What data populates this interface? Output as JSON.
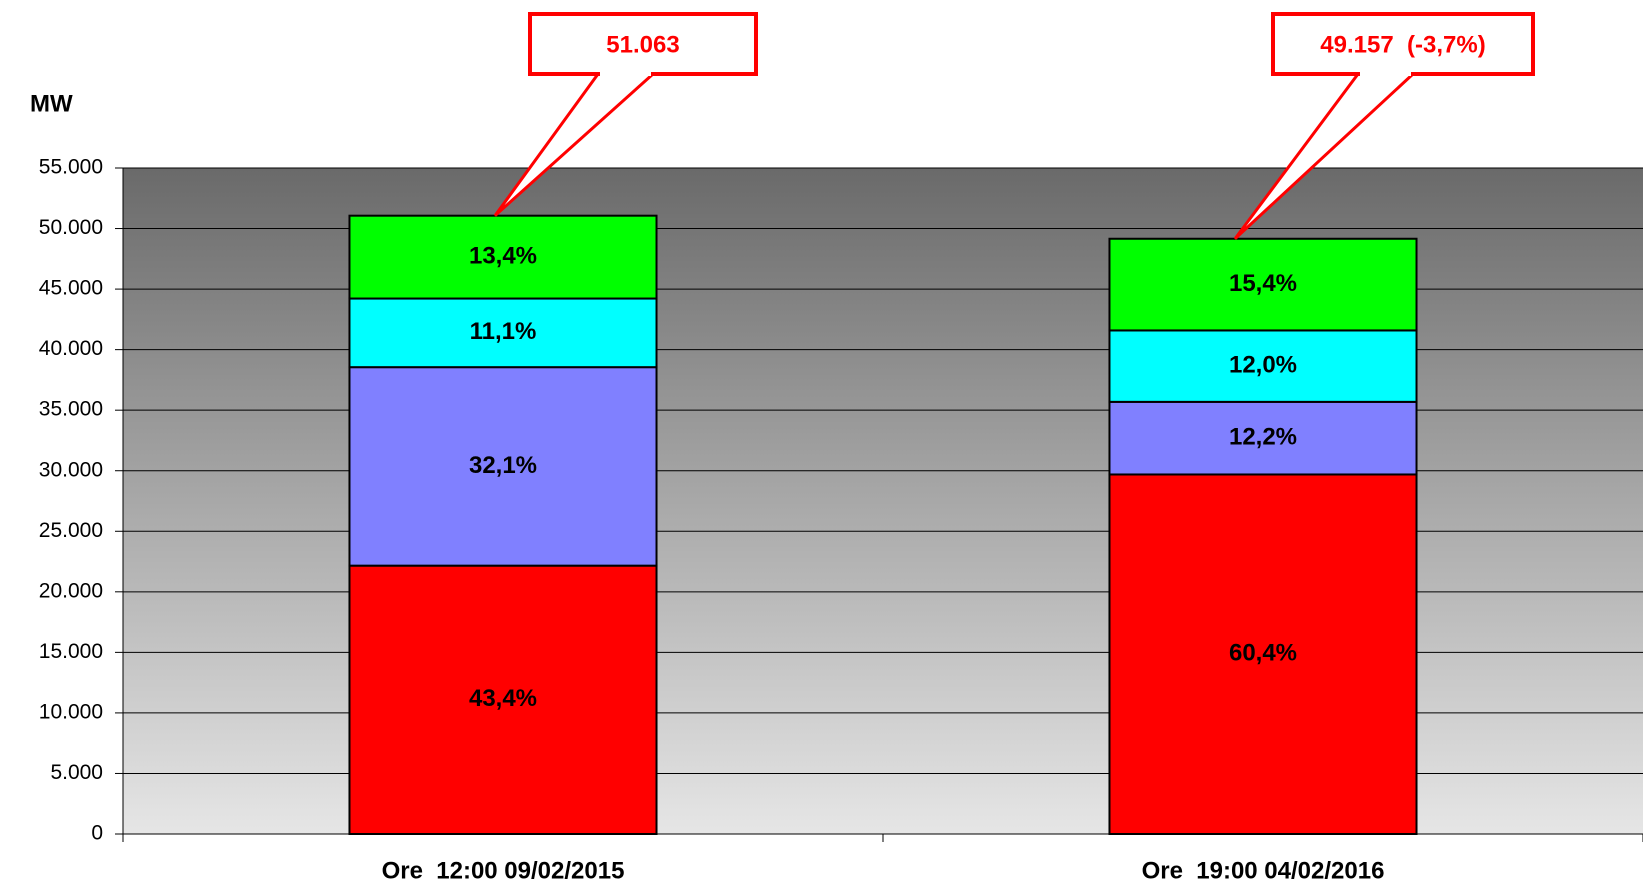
{
  "chart_data": {
    "type": "stacked_bar",
    "y_label": "MW",
    "categories": [
      "Ore  12:00 09/02/2015",
      "Ore  19:00 04/02/2016"
    ],
    "series": [
      {
        "color": "#ff0000",
        "values": [
          22161,
          29691
        ],
        "value_labels": [
          "43,4%",
          "60,4%"
        ]
      },
      {
        "color": "#8080ff",
        "values": [
          16391,
          5997
        ],
        "value_labels": [
          "32,1%",
          "12,2%"
        ]
      },
      {
        "color": "#00ffff",
        "values": [
          5668,
          5899
        ],
        "value_labels": [
          "11,1%",
          "12,0%"
        ]
      },
      {
        "color": "#00ff00",
        "values": [
          6842,
          7570
        ],
        "value_labels": [
          "13,4%",
          "15,4%"
        ]
      }
    ],
    "annotations": [
      "51.063",
      "49.157  (-3,7%)"
    ],
    "ylim": [
      0,
      55000
    ],
    "yticks": [
      0,
      {
        "value": 5000,
        "label": "5.000"
      },
      {
        "value": 10000,
        "label": "10.000"
      },
      {
        "value": 15000,
        "label": "15.000"
      },
      {
        "value": 20000,
        "label": "20.000"
      },
      {
        "value": 25000,
        "label": "25.000"
      },
      {
        "value": 30000,
        "label": "30.000"
      },
      {
        "value": 35000,
        "label": "35.000"
      },
      {
        "value": 40000,
        "label": "40.000"
      },
      {
        "value": 45000,
        "label": "45.000"
      },
      {
        "value": 50000,
        "label": "50.000"
      },
      {
        "value": 55000,
        "label": "55.000"
      }
    ],
    "grid": true
  }
}
